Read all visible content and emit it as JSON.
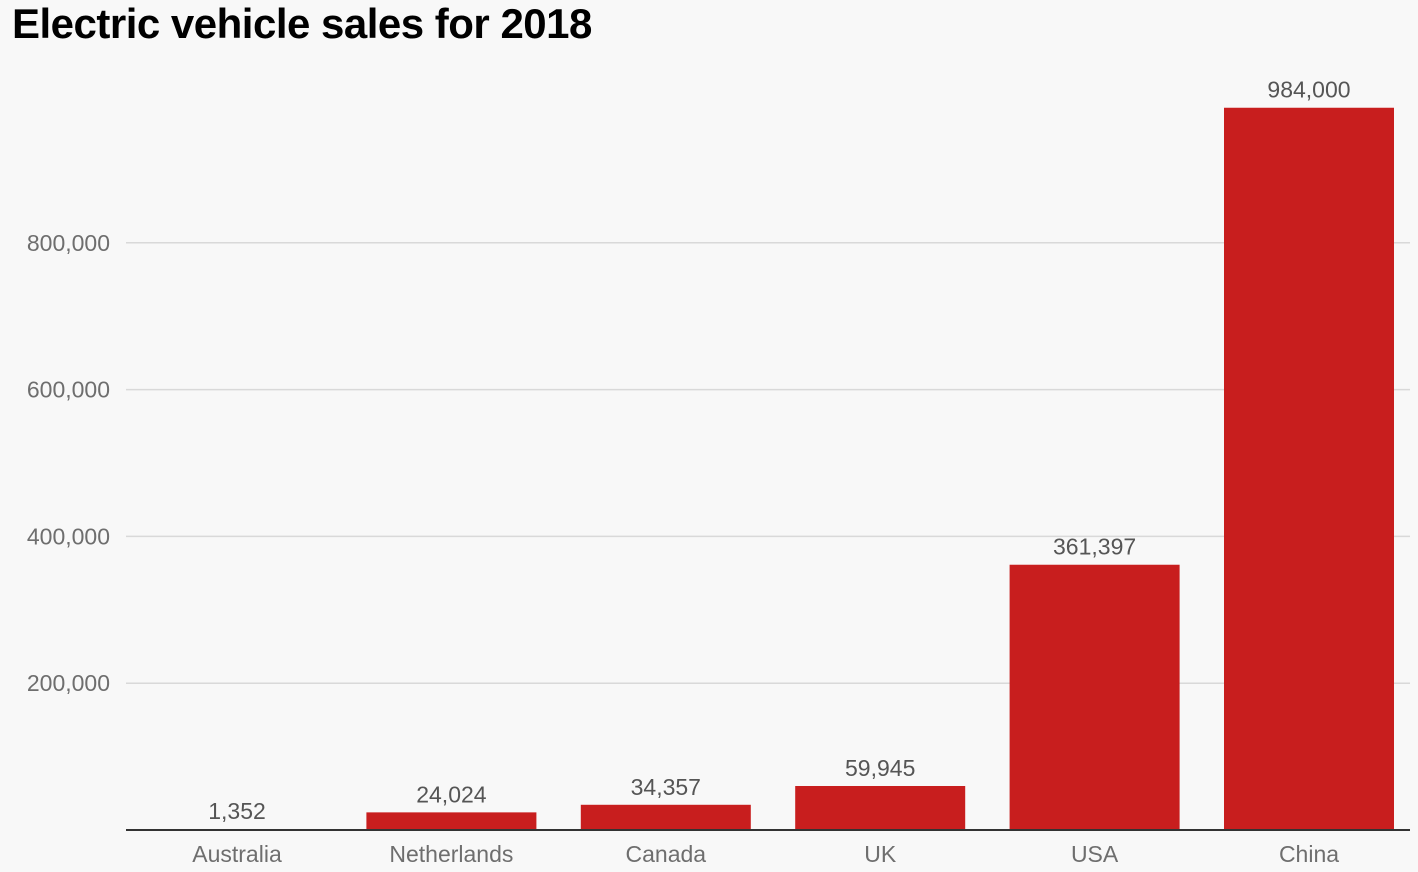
{
  "chart_data": {
    "type": "bar",
    "title": "Electric vehicle sales for 2018",
    "categories": [
      "Australia",
      "Netherlands",
      "Canada",
      "UK",
      "USA",
      "China"
    ],
    "values": [
      1352,
      24024,
      34357,
      59945,
      361397,
      984000
    ],
    "value_labels": [
      "1,352",
      "24,024",
      "34,357",
      "59,945",
      "361,397",
      "984,000"
    ],
    "xlabel": "",
    "ylabel": "",
    "ylim": [
      0,
      1000000
    ],
    "yticks": [
      200000,
      400000,
      600000,
      800000
    ],
    "ytick_labels": [
      "200,000",
      "400,000",
      "600,000",
      "800,000"
    ],
    "grid": true,
    "legend": "none",
    "bar_color": "#c81e1e",
    "grid_color": "#d9d9d9",
    "axis_color": "#333333"
  }
}
